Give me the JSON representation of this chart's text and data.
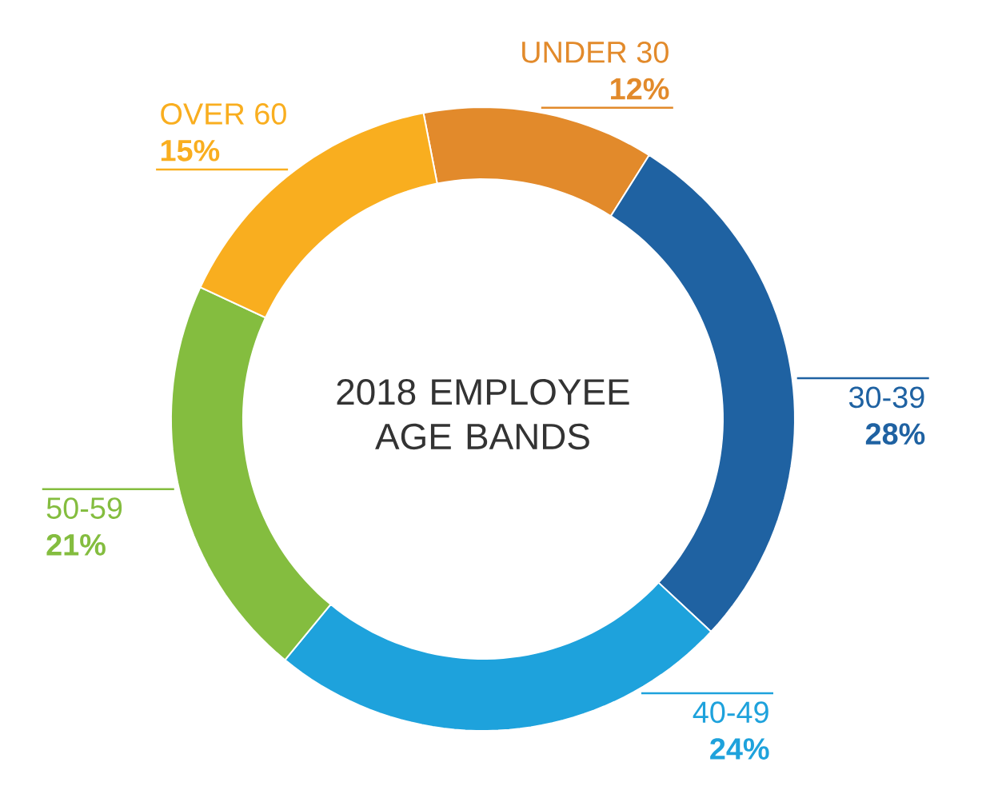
{
  "chart_data": {
    "type": "donut",
    "title": "2018 EMPLOYEE AGE BANDS",
    "categories": [
      "UNDER 30",
      "30-39",
      "40-49",
      "50-59",
      "OVER 60"
    ],
    "values": [
      12,
      28,
      24,
      21,
      15
    ],
    "value_labels": [
      "12%",
      "28%",
      "24%",
      "21%",
      "15%"
    ],
    "colors": [
      "#e28a2b",
      "#1f62a2",
      "#1ea2dc",
      "#84bd3f",
      "#f9ae1f"
    ]
  }
}
